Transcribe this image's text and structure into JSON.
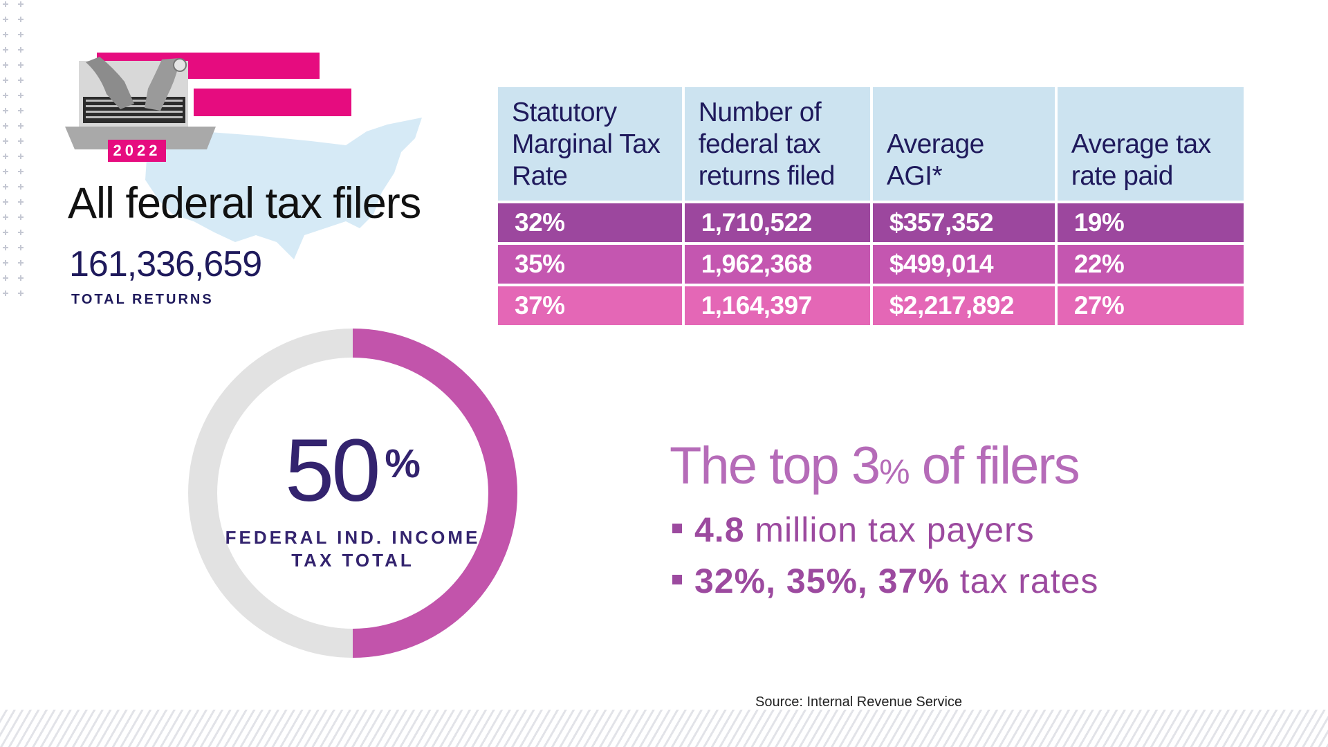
{
  "header": {
    "year": "2022",
    "title": "All federal tax filers",
    "total_returns": "161,336,659",
    "total_label": "TOTAL RETURNS"
  },
  "table": {
    "headers": [
      "Statutory Marginal Tax Rate",
      "Number of federal tax returns filed",
      "Average AGI*",
      "Average tax rate paid"
    ],
    "rows": [
      {
        "rate": "32%",
        "returns": "1,710,522",
        "agi": "$357,352",
        "avg_rate": "19%",
        "color": "#9c479e"
      },
      {
        "rate": "35%",
        "returns": "1,962,368",
        "agi": "$499,014",
        "avg_rate": "22%",
        "color": "#c456b0"
      },
      {
        "rate": "37%",
        "returns": "1,164,397",
        "agi": "$2,217,892",
        "avg_rate": "27%",
        "color": "#e467b6"
      }
    ]
  },
  "donut": {
    "value_number": "50",
    "value_unit": "%",
    "caption_line1": "FEDERAL IND. INCOME",
    "caption_line2": "TAX TOTAL"
  },
  "summary": {
    "heading_prefix": "The top 3",
    "heading_pct": "%",
    "heading_suffix": " of filers",
    "bullet1_bold": "4.8",
    "bullet1_rest": " million tax payers",
    "bullet2_bold": "32%, 35%, 37%",
    "bullet2_rest": " tax rates"
  },
  "source": "Source: Internal Revenue Service",
  "colors": {
    "accent_pink": "#e60c7f",
    "donut_fill": "#c254ab",
    "donut_track": "#e2e2e2",
    "header_blue": "#cce3f0"
  },
  "chart_data": [
    {
      "type": "table",
      "columns": [
        "Statutory Marginal Tax Rate",
        "Number of federal tax returns filed",
        "Average AGI*",
        "Average tax rate paid"
      ],
      "rows": [
        [
          "32%",
          "1,710,522",
          "$357,352",
          "19%"
        ],
        [
          "35%",
          "1,962,368",
          "$499,014",
          "22%"
        ],
        [
          "37%",
          "1,164,397",
          "$2,217,892",
          "27%"
        ]
      ]
    },
    {
      "type": "pie",
      "values": [
        50,
        50
      ],
      "highlight_value": 50,
      "center_label": "50%",
      "caption": "FEDERAL IND. INCOME TAX TOTAL"
    }
  ]
}
